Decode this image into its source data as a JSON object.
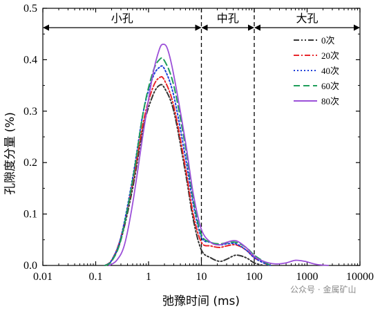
{
  "chart_data": {
    "type": "line",
    "xlabel": "弛豫时间 (ms)",
    "ylabel": "孔隙度分量 (%)",
    "x_scale": "log",
    "xlim": [
      0.01,
      10000
    ],
    "ylim": [
      0,
      0.5
    ],
    "x_ticks": [
      0.01,
      0.1,
      1,
      10,
      100,
      1000,
      10000
    ],
    "x_tick_labels": [
      "0.01",
      "0.1",
      "1",
      "10",
      "100",
      "1000",
      "10000"
    ],
    "y_ticks": [
      0.0,
      0.1,
      0.2,
      0.3,
      0.4,
      0.5
    ],
    "y_tick_labels": [
      "0.0",
      "0.1",
      "0.2",
      "0.3",
      "0.4",
      "0.5"
    ],
    "grid": false,
    "legend_position": "top-right",
    "regions": [
      {
        "label": "小孔",
        "from": 0.01,
        "to": 10
      },
      {
        "label": "中孔",
        "from": 10,
        "to": 100
      },
      {
        "label": "大孔",
        "from": 100,
        "to": 10000
      }
    ],
    "boundaries": [
      10,
      100
    ],
    "series": [
      {
        "name": "0次",
        "color": "#333333",
        "dash": "dashdotdot",
        "points": [
          [
            0.15,
            0
          ],
          [
            0.2,
            0.01
          ],
          [
            0.3,
            0.05
          ],
          [
            0.5,
            0.15
          ],
          [
            0.8,
            0.27
          ],
          [
            1.2,
            0.33
          ],
          [
            1.6,
            0.35
          ],
          [
            2.0,
            0.345
          ],
          [
            3.0,
            0.3
          ],
          [
            5.0,
            0.18
          ],
          [
            7.0,
            0.09
          ],
          [
            10,
            0.03
          ],
          [
            15,
            0.015
          ],
          [
            22,
            0.008
          ],
          [
            30,
            0.012
          ],
          [
            45,
            0.02
          ],
          [
            70,
            0.015
          ],
          [
            100,
            0.005
          ],
          [
            150,
            0
          ]
        ]
      },
      {
        "name": "20次",
        "color": "#e8262b",
        "dash": "dashdot",
        "points": [
          [
            0.15,
            0
          ],
          [
            0.2,
            0.01
          ],
          [
            0.3,
            0.055
          ],
          [
            0.5,
            0.16
          ],
          [
            0.8,
            0.28
          ],
          [
            1.2,
            0.345
          ],
          [
            1.6,
            0.365
          ],
          [
            2.0,
            0.36
          ],
          [
            3.0,
            0.31
          ],
          [
            5.0,
            0.19
          ],
          [
            7.0,
            0.1
          ],
          [
            10,
            0.045
          ],
          [
            15,
            0.038
          ],
          [
            22,
            0.035
          ],
          [
            30,
            0.038
          ],
          [
            45,
            0.04
          ],
          [
            70,
            0.03
          ],
          [
            100,
            0.015
          ],
          [
            150,
            0.005
          ],
          [
            200,
            0
          ]
        ]
      },
      {
        "name": "40次",
        "color": "#1f3fd8",
        "dash": "dot",
        "points": [
          [
            0.15,
            0
          ],
          [
            0.2,
            0.01
          ],
          [
            0.3,
            0.055
          ],
          [
            0.5,
            0.17
          ],
          [
            0.8,
            0.3
          ],
          [
            1.2,
            0.365
          ],
          [
            1.6,
            0.385
          ],
          [
            2.0,
            0.382
          ],
          [
            3.0,
            0.33
          ],
          [
            5.0,
            0.21
          ],
          [
            7.0,
            0.12
          ],
          [
            10,
            0.055
          ],
          [
            15,
            0.045
          ],
          [
            22,
            0.04
          ],
          [
            30,
            0.042
          ],
          [
            45,
            0.042
          ],
          [
            70,
            0.03
          ],
          [
            100,
            0.015
          ],
          [
            150,
            0.005
          ],
          [
            200,
            0
          ]
        ]
      },
      {
        "name": "60次",
        "color": "#1e9e5a",
        "dash": "dash",
        "points": [
          [
            0.15,
            0
          ],
          [
            0.2,
            0.008
          ],
          [
            0.3,
            0.05
          ],
          [
            0.5,
            0.165
          ],
          [
            0.8,
            0.3
          ],
          [
            1.2,
            0.375
          ],
          [
            1.6,
            0.4
          ],
          [
            2.0,
            0.398
          ],
          [
            3.0,
            0.35
          ],
          [
            5.0,
            0.23
          ],
          [
            7.0,
            0.13
          ],
          [
            10,
            0.06
          ],
          [
            15,
            0.045
          ],
          [
            22,
            0.042
          ],
          [
            30,
            0.044
          ],
          [
            45,
            0.045
          ],
          [
            70,
            0.035
          ],
          [
            100,
            0.02
          ],
          [
            150,
            0.008
          ],
          [
            200,
            0
          ]
        ]
      },
      {
        "name": "80次",
        "color": "#9b4fd8",
        "dash": "solid",
        "points": [
          [
            0.18,
            0
          ],
          [
            0.25,
            0.01
          ],
          [
            0.35,
            0.04
          ],
          [
            0.5,
            0.12
          ],
          [
            0.8,
            0.26
          ],
          [
            1.2,
            0.37
          ],
          [
            1.6,
            0.42
          ],
          [
            1.9,
            0.43
          ],
          [
            2.3,
            0.42
          ],
          [
            3.0,
            0.37
          ],
          [
            5.0,
            0.24
          ],
          [
            7.0,
            0.14
          ],
          [
            10,
            0.07
          ],
          [
            15,
            0.045
          ],
          [
            22,
            0.04
          ],
          [
            30,
            0.045
          ],
          [
            45,
            0.048
          ],
          [
            70,
            0.035
          ],
          [
            100,
            0.018
          ],
          [
            150,
            0.008
          ],
          [
            250,
            0.003
          ],
          [
            400,
            0.005
          ],
          [
            600,
            0.01
          ],
          [
            900,
            0.008
          ],
          [
            1500,
            0.002
          ],
          [
            2500,
            0
          ]
        ]
      }
    ]
  },
  "watermark": "公众号 · 金属矿山"
}
